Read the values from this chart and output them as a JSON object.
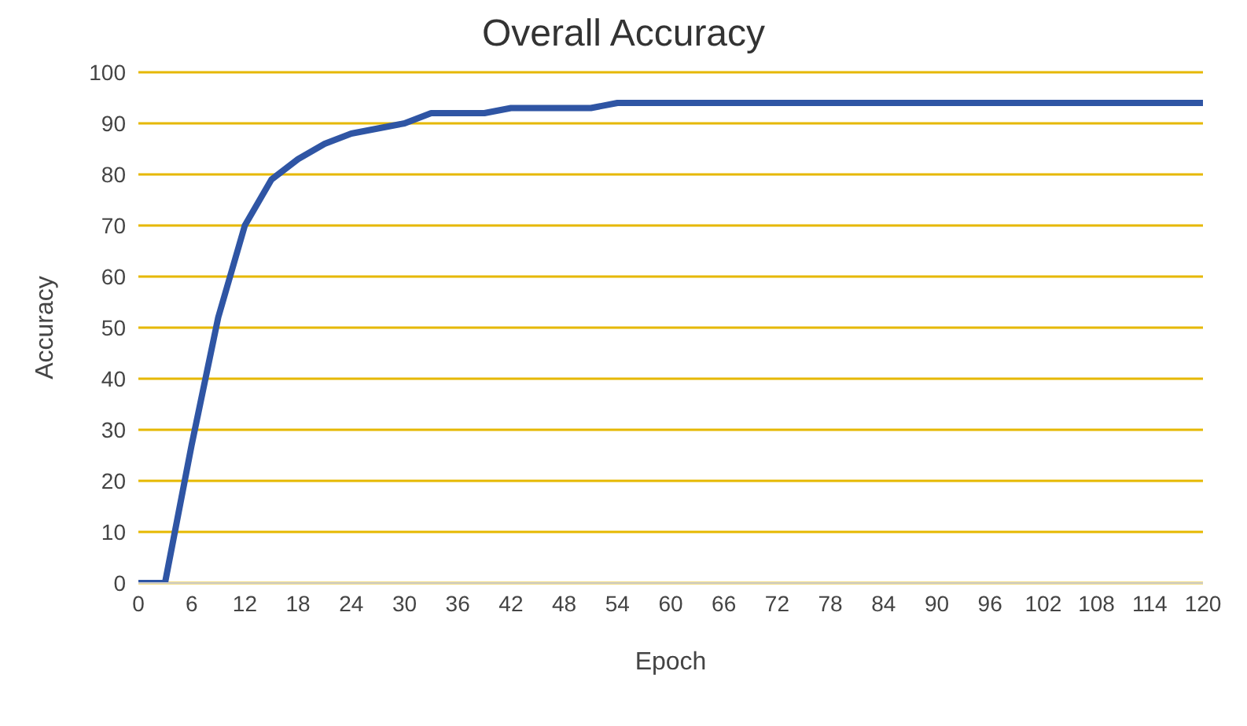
{
  "chart_data": {
    "type": "line",
    "title": "Overall Accuracy",
    "xlabel": "Epoch",
    "ylabel": "Accuracy",
    "x": [
      0,
      3,
      6,
      9,
      12,
      15,
      18,
      21,
      24,
      27,
      30,
      33,
      36,
      39,
      42,
      45,
      48,
      51,
      54,
      60,
      66,
      72,
      78,
      84,
      90,
      96,
      102,
      108,
      114,
      120
    ],
    "series": [
      {
        "color": "#2f55a4",
        "values": [
          0,
          0,
          27,
          52,
          70,
          79,
          83,
          86,
          88,
          89,
          90,
          92,
          92,
          92,
          93,
          93,
          93,
          93,
          94,
          94,
          94,
          94,
          94,
          94,
          94,
          94,
          94,
          94,
          94,
          94
        ]
      }
    ],
    "xlim": [
      0,
      120
    ],
    "xticks": [
      0,
      6,
      12,
      18,
      24,
      30,
      36,
      42,
      48,
      54,
      60,
      66,
      72,
      78,
      84,
      90,
      96,
      102,
      108,
      114,
      120
    ],
    "ylim": [
      0,
      100
    ],
    "yticks": [
      0,
      10,
      20,
      30,
      40,
      50,
      60,
      70,
      80,
      90,
      100
    ],
    "grid": "y",
    "legend": false,
    "marker": "none",
    "line_style": "solid"
  }
}
